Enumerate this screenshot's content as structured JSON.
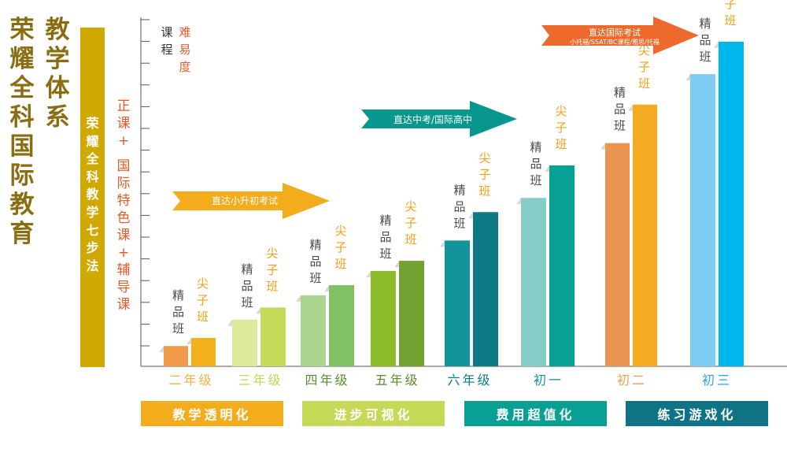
{
  "title": {
    "col1": [
      "荣",
      "耀",
      "全",
      "科",
      "国",
      "际",
      "教",
      "育"
    ],
    "col2": [
      "教",
      "学",
      "体",
      "系"
    ]
  },
  "side_band": {
    "text": [
      "荣",
      "耀",
      "全",
      "科",
      "教",
      "学",
      "七",
      "步",
      "法"
    ],
    "color": "#cfa800"
  },
  "description": {
    "col1": [
      "正",
      "课",
      "+"
    ],
    "col2": [
      "国",
      "际",
      "特",
      "色",
      "课",
      "+",
      "辅",
      "导",
      "课"
    ]
  },
  "axis_legend": {
    "course": [
      "课",
      "程"
    ],
    "difficulty": [
      "难",
      "易",
      "度"
    ]
  },
  "arrows": [
    {
      "text": "直达小升初考试",
      "subtext": "",
      "color": "#f3ad1c"
    },
    {
      "text": "直达中考/国际高中",
      "subtext": "",
      "color": "#08978e"
    },
    {
      "text": "直达国际考试",
      "subtext": "小托福/SSAT/BC课程/雅思/托福",
      "color": "#ee6a2c"
    }
  ],
  "chart_data": {
    "type": "bar",
    "categories": [
      "二年级",
      "三年级",
      "四年级",
      "五年级",
      "六年级",
      "初一",
      "初二",
      "初三"
    ],
    "series": [
      {
        "name": "精品班",
        "label": [
          "精",
          "品",
          "班"
        ],
        "values": [
          1.0,
          2.3,
          3.5,
          4.7,
          6.2,
          8.3,
          11.0,
          14.4
        ],
        "colors": [
          "#ef9a4a",
          "#dce89a",
          "#acd591",
          "#8cbc2a",
          "#13939a",
          "#86ccc8",
          "#eb9650",
          "#7dccf2"
        ]
      },
      {
        "name": "尖子班",
        "label": [
          "尖",
          "子",
          "班"
        ],
        "values": [
          1.4,
          2.9,
          4.0,
          5.2,
          7.6,
          9.9,
          12.9,
          16.0
        ],
        "colors": [
          "#f3b01d",
          "#c7d958",
          "#82c163",
          "#72a332",
          "#0e7a85",
          "#07a096",
          "#f4ad23",
          "#00b7ec"
        ]
      }
    ],
    "category_colors": [
      "#f5b042",
      "#c3d652",
      "#5f8a2c",
      "#5f8a2c",
      "#0e7a85",
      "#13939a",
      "#f39b4c",
      "#29a7df"
    ],
    "ylim": [
      0,
      17.2
    ],
    "grid": false
  },
  "features": [
    {
      "text": "教学透明化",
      "color": "#f3ad1c"
    },
    {
      "text": "进步可视化",
      "color": "#c5d957"
    },
    {
      "text": "费用超值化",
      "color": "#08a095"
    },
    {
      "text": "练习游戏化",
      "color": "#0e7385"
    }
  ],
  "colors": {
    "title": "#8a6d10",
    "description": "#e35a2a",
    "legend_course": "#333333",
    "legend_difficulty": "#e35a2a",
    "label_jingpin": "#4a4a4a",
    "label_jianzi": "#f0a01a",
    "axis": "#555555"
  }
}
